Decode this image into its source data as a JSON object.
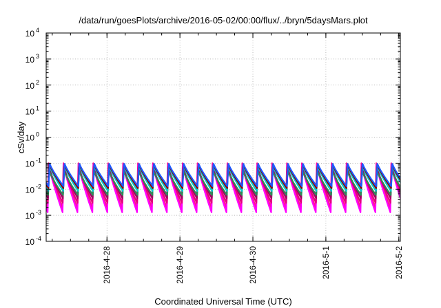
{
  "chart_data": {
    "type": "line",
    "title": "/data/run/goesPlots/archive/2016-05-02/00:00/flux/../bryn/5daysMars.plot",
    "xlabel": "Coordinated Universal Time (UTC)",
    "ylabel": "cSv/day",
    "xlim": [
      "2016-04-27T04:00",
      "2016-05-02T00:30"
    ],
    "ylim": [
      0.0001,
      10000
    ],
    "yscale": "log",
    "grid": true,
    "x_ticks": [
      "2016-4-28",
      "2016-4-29",
      "2016-4-30",
      "2016-5-1",
      "2016-5-2"
    ],
    "y_ticks": [
      {
        "base": "10",
        "exp": "-4"
      },
      {
        "base": "10",
        "exp": "-3"
      },
      {
        "base": "10",
        "exp": "-2"
      },
      {
        "base": "10",
        "exp": "-1"
      },
      {
        "base": "10",
        "exp": "0"
      },
      {
        "base": "10",
        "exp": "1"
      },
      {
        "base": "10",
        "exp": "2"
      },
      {
        "base": "10",
        "exp": "3"
      },
      {
        "base": "10",
        "exp": "4"
      }
    ],
    "pattern": {
      "first_peak": "2016-04-27T04:48",
      "period_hours": 4.9,
      "peak_values": [
        0.1,
        0.095,
        0.09,
        0.085,
        0.08,
        0.072,
        0.065,
        0.05
      ],
      "trough_values": [
        0.013,
        0.011,
        0.0085,
        0.006,
        0.0045,
        0.003,
        0.002,
        0.0013
      ],
      "phase_lag_hours": 0.35
    },
    "series": [
      {
        "color": "#ff1493",
        "peak_index": 0,
        "trough_index": 6
      },
      {
        "color": "#ff00ff",
        "peak_index": 3,
        "trough_index": 7
      },
      {
        "color": "#e4007c",
        "peak_index": 5,
        "trough_index": 5
      },
      {
        "color": "#a00060",
        "peak_index": 6,
        "trough_index": 4
      },
      {
        "color": "#2e8b57",
        "peak_index": 7,
        "trough_index": 3
      },
      {
        "color": "#00cccc",
        "peak_index": 4,
        "trough_index": 2
      },
      {
        "color": "#8b0000",
        "peak_index": 2,
        "trough_index": 1
      },
      {
        "color": "#1e5aff",
        "peak_index": 1,
        "trough_index": 0
      }
    ]
  }
}
